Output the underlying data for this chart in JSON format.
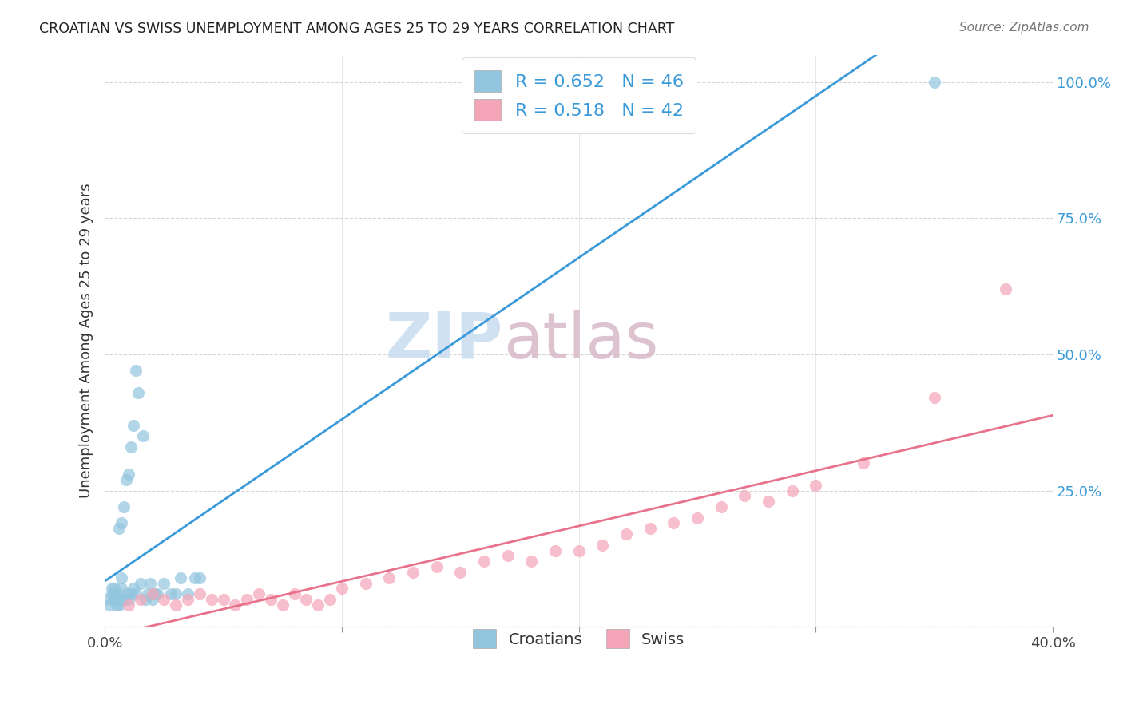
{
  "title": "CROATIAN VS SWISS UNEMPLOYMENT AMONG AGES 25 TO 29 YEARS CORRELATION CHART",
  "source": "Source: ZipAtlas.com",
  "ylabel": "Unemployment Among Ages 25 to 29 years",
  "legend_croatians": "Croatians",
  "legend_swiss": "Swiss",
  "r_croatian": 0.652,
  "n_croatian": 46,
  "r_swiss": 0.518,
  "n_swiss": 42,
  "blue_scatter_color": "#92c5de",
  "pink_scatter_color": "#f4a5b8",
  "blue_line_color": "#3a9ad9",
  "pink_line_color": "#e8728a",
  "title_color": "#222222",
  "label_color": "#3a9ad9",
  "watermark_zip_color": "#c8dcf0",
  "watermark_atlas_color": "#d8b8c8",
  "background_color": "#ffffff",
  "grid_color": "#cccccc",
  "xlim": [
    0.0,
    0.4
  ],
  "ylim": [
    0.0,
    1.05
  ],
  "x_tick_positions": [
    0.0,
    0.1,
    0.2,
    0.3,
    0.4
  ],
  "x_tick_labels_bottom": [
    "0.0%",
    "",
    "",
    "",
    "40.0%"
  ],
  "y_tick_positions": [
    0.0,
    0.25,
    0.5,
    0.75,
    1.0
  ],
  "y_tick_labels": [
    "",
    "25.0%",
    "50.0%",
    "75.0%",
    "100.0%"
  ],
  "croatian_x": [
    0.001,
    0.002,
    0.003,
    0.003,
    0.004,
    0.004,
    0.004,
    0.005,
    0.005,
    0.005,
    0.006,
    0.006,
    0.006,
    0.007,
    0.007,
    0.007,
    0.008,
    0.008,
    0.009,
    0.009,
    0.01,
    0.01,
    0.011,
    0.011,
    0.012,
    0.012,
    0.013,
    0.013,
    0.014,
    0.015,
    0.016,
    0.017,
    0.018,
    0.019,
    0.02,
    0.021,
    0.022,
    0.025,
    0.028,
    0.03,
    0.032,
    0.035,
    0.038,
    0.04,
    0.175,
    0.35
  ],
  "croatian_y": [
    0.05,
    0.04,
    0.06,
    0.07,
    0.05,
    0.06,
    0.07,
    0.04,
    0.05,
    0.06,
    0.18,
    0.04,
    0.05,
    0.07,
    0.09,
    0.19,
    0.05,
    0.22,
    0.06,
    0.27,
    0.05,
    0.28,
    0.06,
    0.33,
    0.07,
    0.37,
    0.06,
    0.47,
    0.43,
    0.08,
    0.35,
    0.05,
    0.06,
    0.08,
    0.05,
    0.06,
    0.06,
    0.08,
    0.06,
    0.06,
    0.09,
    0.06,
    0.09,
    0.09,
    0.95,
    1.0
  ],
  "swiss_x": [
    0.01,
    0.015,
    0.02,
    0.025,
    0.03,
    0.035,
    0.04,
    0.045,
    0.05,
    0.055,
    0.06,
    0.065,
    0.07,
    0.075,
    0.08,
    0.085,
    0.09,
    0.095,
    0.1,
    0.11,
    0.12,
    0.13,
    0.14,
    0.15,
    0.16,
    0.17,
    0.18,
    0.19,
    0.2,
    0.21,
    0.22,
    0.23,
    0.24,
    0.25,
    0.26,
    0.27,
    0.28,
    0.29,
    0.3,
    0.32,
    0.35,
    0.38
  ],
  "swiss_y": [
    0.04,
    0.05,
    0.06,
    0.05,
    0.04,
    0.05,
    0.06,
    0.05,
    0.05,
    0.04,
    0.05,
    0.06,
    0.05,
    0.04,
    0.06,
    0.05,
    0.04,
    0.05,
    0.07,
    0.08,
    0.09,
    0.1,
    0.11,
    0.1,
    0.12,
    0.13,
    0.12,
    0.14,
    0.14,
    0.15,
    0.17,
    0.18,
    0.19,
    0.2,
    0.22,
    0.24,
    0.23,
    0.25,
    0.26,
    0.3,
    0.42,
    0.62
  ]
}
